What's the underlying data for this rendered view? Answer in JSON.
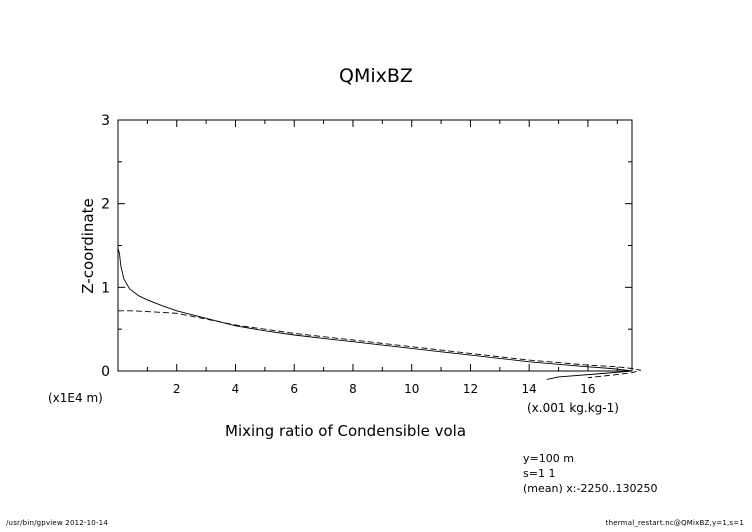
{
  "chart_data": {
    "type": "line",
    "title": "QMixBZ",
    "xlabel": "Mixing ratio of Condensible vola",
    "ylabel": "Z-coordinate",
    "x_unit": "(x.001 kg.kg-1)",
    "y_unit": "(x1E4 m)",
    "xlim": [
      0,
      17.5
    ],
    "ylim": [
      0,
      3.0
    ],
    "x_ticks": [
      "2",
      "4",
      "6",
      "8",
      "10",
      "12",
      "14",
      "16"
    ],
    "x_tick_values": [
      2,
      4,
      6,
      8,
      10,
      12,
      14,
      16
    ],
    "y_ticks": [
      "0",
      "1",
      "2",
      "3"
    ],
    "y_tick_values": [
      0,
      1,
      2,
      3
    ],
    "grid": false,
    "series": [
      {
        "style": "solid",
        "x": [
          0.0,
          0.05,
          0.1,
          0.2,
          0.4,
          0.7,
          1.0,
          1.5,
          2.0,
          3.0,
          4.0,
          5.0,
          6.0,
          7.0,
          8.0,
          9.0,
          10.0,
          11.0,
          12.0,
          13.0,
          14.0,
          15.0,
          16.0,
          16.8,
          17.3,
          17.5,
          16.5,
          15.0,
          14.6
        ],
        "y": [
          1.47,
          1.4,
          1.25,
          1.1,
          0.98,
          0.9,
          0.85,
          0.78,
          0.72,
          0.63,
          0.54,
          0.48,
          0.43,
          0.39,
          0.35,
          0.31,
          0.27,
          0.23,
          0.19,
          0.15,
          0.11,
          0.08,
          0.05,
          0.03,
          0.01,
          0.0,
          -0.03,
          -0.07,
          -0.1
        ]
      },
      {
        "style": "dashed",
        "x": [
          0.0,
          0.5,
          1.0,
          1.5,
          2.0,
          3.0,
          4.0,
          5.0,
          6.0,
          7.0,
          8.0,
          9.0,
          10.0,
          11.0,
          12.0,
          13.0,
          14.0,
          15.0,
          16.0,
          17.0,
          17.5,
          17.8,
          17.5,
          16.8,
          16.0
        ],
        "y": [
          0.72,
          0.72,
          0.71,
          0.7,
          0.69,
          0.62,
          0.55,
          0.5,
          0.45,
          0.41,
          0.37,
          0.33,
          0.29,
          0.25,
          0.21,
          0.17,
          0.13,
          0.1,
          0.07,
          0.05,
          0.03,
          0.01,
          -0.02,
          -0.05,
          -0.08
        ]
      }
    ],
    "annotations": [
      "y=100 m",
      "s=1 1",
      "(mean) x:-2250..130250"
    ]
  },
  "footer": {
    "left": "/usr/bin/gpview  2012-10-14",
    "right": "thermal_restart.nc@QMixBZ,y=1,s=1"
  }
}
